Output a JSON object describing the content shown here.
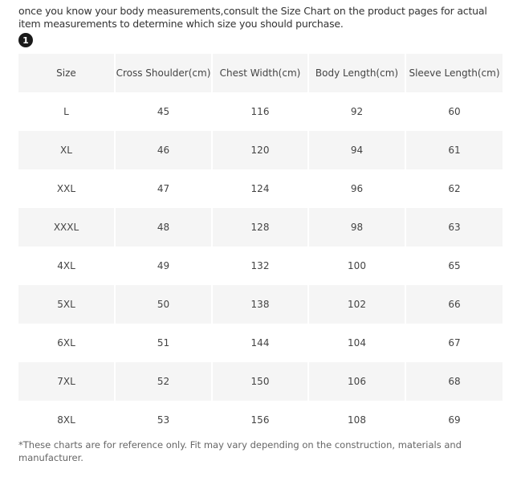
{
  "intro_text": "once you know your body measurements,consult the Size Chart on the product pages for actual item measurements to determine which size you should purchase.",
  "step_badge": "1",
  "size_table": {
    "headers": [
      "Size",
      "Cross Shoulder(cm)",
      "Chest Width(cm)",
      "Body Length(cm)",
      "Sleeve Length(cm)"
    ],
    "rows": [
      [
        "L",
        "45",
        "116",
        "92",
        "60"
      ],
      [
        "XL",
        "46",
        "120",
        "94",
        "61"
      ],
      [
        "XXL",
        "47",
        "124",
        "96",
        "62"
      ],
      [
        "XXXL",
        "48",
        "128",
        "98",
        "63"
      ],
      [
        "4XL",
        "49",
        "132",
        "100",
        "65"
      ],
      [
        "5XL",
        "50",
        "138",
        "102",
        "66"
      ],
      [
        "6XL",
        "51",
        "144",
        "104",
        "67"
      ],
      [
        "7XL",
        "52",
        "150",
        "106",
        "68"
      ],
      [
        "8XL",
        "53",
        "156",
        "108",
        "69"
      ]
    ]
  },
  "footnote": "*These charts are for reference only. Fit may vary depending on the construction, materials and manufacturer.",
  "colors": {
    "shaded_row": "#f5f5f5",
    "badge": "#1a1a1a"
  }
}
